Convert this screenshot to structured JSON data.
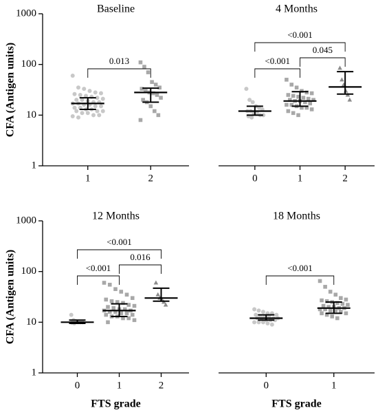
{
  "chart_data": [
    {
      "type": "dotplot",
      "title": "Baseline",
      "ylabel": "CFA (Antigen units)",
      "categories": [
        "1",
        "2"
      ],
      "log": true,
      "ylim": [
        1,
        1000
      ],
      "yticks": [
        1,
        10,
        100,
        1000
      ],
      "groups": [
        {
          "marker": "circle",
          "color": "#c8c8c8",
          "values": [
            60,
            35,
            33,
            30,
            28,
            27,
            26,
            25,
            24,
            23,
            22,
            21,
            20,
            20,
            19,
            18,
            18,
            17,
            17,
            16,
            16,
            15,
            15,
            14,
            14,
            13,
            13,
            12,
            12,
            12,
            11,
            11,
            10,
            10,
            9.5,
            9
          ],
          "median": 17,
          "range": [
            13,
            22
          ]
        },
        {
          "marker": "square",
          "color": "#a8a8a8",
          "values": [
            110,
            90,
            70,
            45,
            40,
            35,
            33,
            30,
            28,
            27,
            25,
            22,
            20,
            18,
            15,
            12,
            10,
            8
          ],
          "median": 28,
          "range": [
            18,
            34
          ]
        }
      ],
      "comparisons": [
        {
          "from": 0,
          "to": 1,
          "label": "0.013"
        }
      ]
    },
    {
      "type": "dotplot",
      "title": "4 Months",
      "categories": [
        "0",
        "1",
        "2"
      ],
      "log": true,
      "ylim": [
        1,
        1000
      ],
      "groups": [
        {
          "marker": "circle",
          "color": "#c8c8c8",
          "values": [
            33,
            20,
            18,
            15,
            14,
            13,
            12,
            12,
            11,
            11,
            10,
            10,
            9.5,
            9
          ],
          "median": 12,
          "range": [
            10,
            15
          ]
        },
        {
          "marker": "square",
          "color": "#a8a8a8",
          "values": [
            50,
            40,
            35,
            30,
            28,
            27,
            25,
            24,
            23,
            22,
            21,
            20,
            20,
            19,
            19,
            18,
            17,
            16,
            16,
            15,
            14,
            14,
            13,
            12,
            11,
            10
          ],
          "median": 19,
          "range": [
            15,
            29
          ]
        },
        {
          "marker": "triangle",
          "color": "#8c8c8c",
          "values": [
            85,
            50,
            40,
            30,
            25,
            20
          ],
          "median": 36,
          "range": [
            26,
            72
          ]
        }
      ],
      "comparisons": [
        {
          "from": 0,
          "to": 1,
          "label": "<0.001"
        },
        {
          "from": 1,
          "to": 2,
          "label": "0.045"
        },
        {
          "from": 0,
          "to": 2,
          "label": "<0.001"
        }
      ]
    },
    {
      "type": "dotplot",
      "title": "12 Months",
      "ylabel": "CFA (Antigen units)",
      "xlabel": "FTS grade",
      "categories": [
        "0",
        "1",
        "2"
      ],
      "log": true,
      "ylim": [
        1,
        1000
      ],
      "yticks": [
        1,
        10,
        100,
        1000
      ],
      "groups": [
        {
          "marker": "circle",
          "color": "#c8c8c8",
          "values": [
            14,
            11,
            10.5,
            10,
            10,
            10,
            9.8,
            9.5
          ],
          "median": 10,
          "range": [
            9.5,
            11
          ]
        },
        {
          "marker": "square",
          "color": "#a8a8a8",
          "values": [
            60,
            55,
            45,
            40,
            35,
            30,
            28,
            26,
            25,
            24,
            22,
            21,
            20,
            19,
            18,
            18,
            17,
            17,
            16,
            16,
            15,
            15,
            14,
            14,
            13,
            13,
            12,
            12,
            11,
            10
          ],
          "median": 17,
          "range": [
            13,
            23
          ]
        },
        {
          "marker": "triangle",
          "color": "#8c8c8c",
          "values": [
            60,
            35,
            30,
            28,
            25,
            22
          ],
          "median": 30,
          "range": [
            26,
            47
          ]
        }
      ],
      "comparisons": [
        {
          "from": 0,
          "to": 1,
          "label": "<0.001"
        },
        {
          "from": 1,
          "to": 2,
          "label": "0.016"
        },
        {
          "from": 0,
          "to": 2,
          "label": "<0.001"
        }
      ]
    },
    {
      "type": "dotplot",
      "title": "18 Months",
      "xlabel": "FTS grade",
      "categories": [
        "0",
        "1"
      ],
      "log": true,
      "ylim": [
        1,
        1000
      ],
      "groups": [
        {
          "marker": "circle",
          "color": "#c8c8c8",
          "values": [
            18,
            17,
            16,
            15,
            15,
            14,
            14,
            13,
            13,
            13,
            12,
            12,
            12,
            12,
            11,
            11,
            11,
            10,
            10,
            10,
            9.5,
            9
          ],
          "median": 12,
          "range": [
            11,
            14
          ]
        },
        {
          "marker": "square",
          "color": "#a8a8a8",
          "values": [
            65,
            50,
            40,
            35,
            30,
            28,
            27,
            26,
            25,
            24,
            23,
            22,
            21,
            20,
            20,
            19,
            19,
            18,
            18,
            17,
            17,
            16,
            15,
            15,
            14,
            13,
            12
          ],
          "median": 19,
          "range": [
            15,
            25
          ]
        }
      ],
      "comparisons": [
        {
          "from": 0,
          "to": 1,
          "label": "<0.001"
        }
      ]
    }
  ]
}
